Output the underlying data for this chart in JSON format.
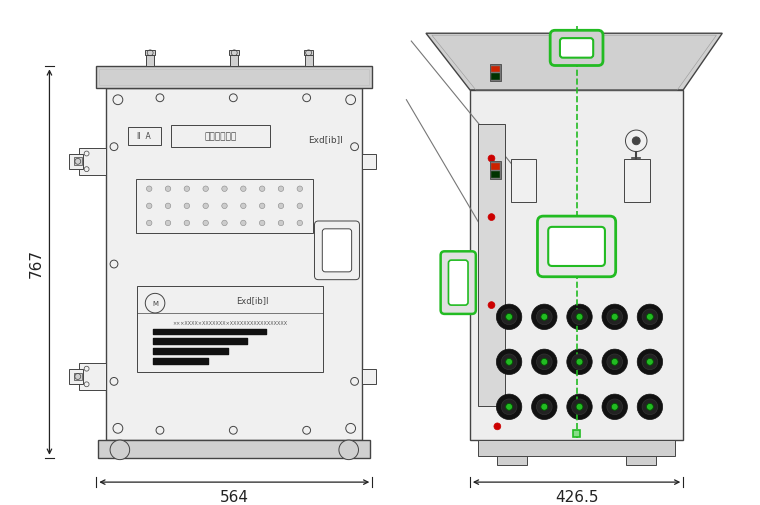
{
  "bg_color": "#ffffff",
  "line_color": "#444444",
  "gray_fill": "#e8e8e8",
  "mid_gray": "#d0d0d0",
  "light_gray": "#f0f0f0",
  "green_color": "#22bb22",
  "dark_green": "#005500",
  "red_color": "#cc2200",
  "black_color": "#111111",
  "dim_color": "#222222",
  "dim1_label": "767",
  "dim2_label": "564",
  "dim3_label": "426.5",
  "left_text1": "严禁带电开盖",
  "left_text2": "Exd[ib]Ⅰ",
  "left_text3": "Exd[ib]Ⅰ",
  "left_text4": "Ⅱ  A"
}
